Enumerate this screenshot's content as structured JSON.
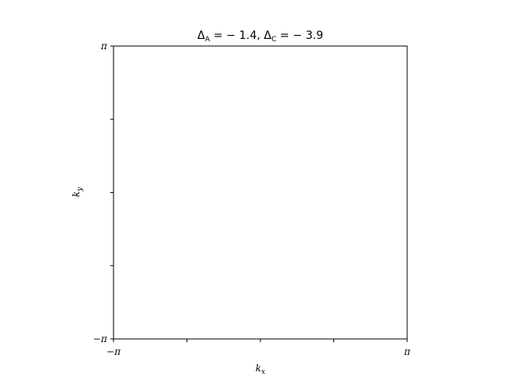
{
  "chart_data": {
    "type": "scatter",
    "title": "ΔA = − 1.4, ΔC = − 3.9",
    "title_parts": {
      "a_symbol": "Δ",
      "a_sub": "A",
      "a_value": " = − 1.4, ",
      "c_symbol": "Δ",
      "c_sub": "C",
      "c_value": " = − 3.9"
    },
    "xlabel": {
      "base": "k",
      "sub": "x"
    },
    "ylabel": {
      "base": "k",
      "sub": "y"
    },
    "xlim": [
      -3.14159,
      3.14159
    ],
    "ylim": [
      -3.14159,
      3.14159
    ],
    "x_ticks": [
      {
        "value": -3.14159,
        "label": "−π"
      },
      {
        "value": -1.5708,
        "label": ""
      },
      {
        "value": 0,
        "label": ""
      },
      {
        "value": 1.5708,
        "label": ""
      },
      {
        "value": 3.14159,
        "label": "π"
      }
    ],
    "y_ticks": [
      {
        "value": -3.14159,
        "label": "−π"
      },
      {
        "value": -1.5708,
        "label": ""
      },
      {
        "value": 0,
        "label": ""
      },
      {
        "value": 1.5708,
        "label": ""
      },
      {
        "value": 3.14159,
        "label": "π"
      }
    ],
    "series": [],
    "grid": false,
    "colors": {
      "axes": "#000000",
      "background": "#ffffff"
    }
  }
}
